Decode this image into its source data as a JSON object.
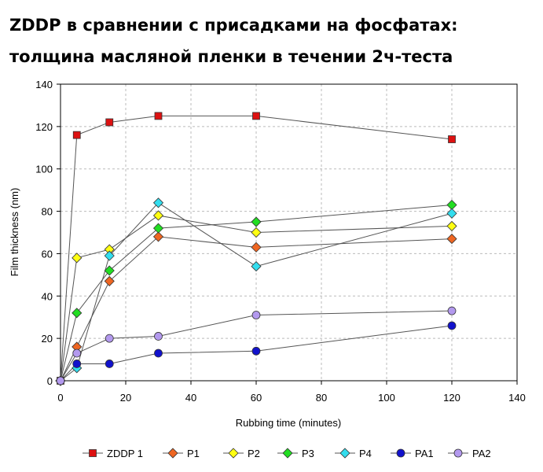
{
  "title_lines": [
    "ZDDP в сравнении с присадками на фосфатах:",
    "толщина масляной пленки в течении 2ч-теста"
  ],
  "chart_data": {
    "type": "line",
    "xlabel": "Rubbing time (minutes)",
    "ylabel": "Film thickness (nm)",
    "xlim": [
      0,
      140
    ],
    "ylim": [
      0,
      140
    ],
    "xticks": [
      0,
      20,
      40,
      60,
      80,
      100,
      120,
      140
    ],
    "yticks": [
      0,
      20,
      40,
      60,
      80,
      100,
      120,
      140
    ],
    "grid": true,
    "legend_position": "bottom",
    "x": [
      0,
      5,
      15,
      30,
      60,
      120
    ],
    "series": [
      {
        "name": "ZDDP 1",
        "marker": "square",
        "color": "#dd1111",
        "values": [
          0,
          116,
          122,
          125,
          125,
          114
        ]
      },
      {
        "name": "P1",
        "marker": "diamond",
        "color": "#ee6622",
        "values": [
          0,
          16,
          47,
          68,
          63,
          67
        ]
      },
      {
        "name": "P2",
        "marker": "diamond",
        "color": "#ffff11",
        "values": [
          0,
          58,
          62,
          78,
          70,
          73
        ]
      },
      {
        "name": "P3",
        "marker": "diamond",
        "color": "#22dd22",
        "values": [
          0,
          32,
          52,
          72,
          75,
          83
        ]
      },
      {
        "name": "P4",
        "marker": "diamond",
        "color": "#33ddee",
        "values": [
          0,
          6,
          59,
          84,
          54,
          79
        ]
      },
      {
        "name": "PA1",
        "marker": "circle",
        "color": "#1111cc",
        "values": [
          0,
          8,
          8,
          13,
          14,
          26
        ]
      },
      {
        "name": "PA2",
        "marker": "circle",
        "color": "#b399ee",
        "values": [
          0,
          13,
          20,
          21,
          31,
          33
        ]
      }
    ]
  }
}
